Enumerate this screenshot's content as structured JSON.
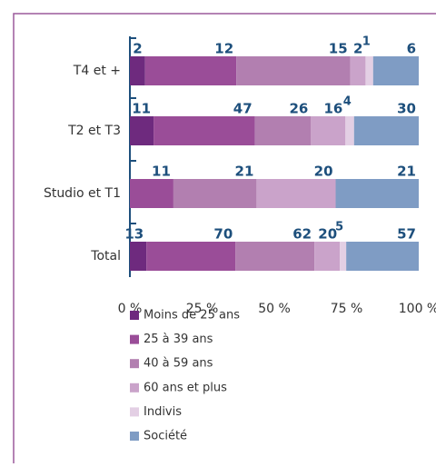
{
  "chart_data": {
    "type": "bar",
    "orientation": "horizontal",
    "stacking": "percent",
    "categories": [
      "T4 et +",
      "T2 et T3",
      "Studio et T1",
      "Total"
    ],
    "series": [
      {
        "name": "Moins de 25 ans",
        "color": "#6e2a7e",
        "values": [
          2,
          11,
          null,
          13
        ]
      },
      {
        "name": "25 à 39 ans",
        "color": "#9a4d98",
        "values": [
          12,
          47,
          11,
          70
        ]
      },
      {
        "name": "40 à 59 ans",
        "color": "#b27fb0",
        "values": [
          15,
          26,
          21,
          62
        ]
      },
      {
        "name": "60 ans et plus",
        "color": "#caa3ca",
        "values": [
          2,
          16,
          20,
          20
        ]
      },
      {
        "name": "Indivis",
        "color": "#e3cfe4",
        "values": [
          1,
          4,
          null,
          5
        ]
      },
      {
        "name": "Société",
        "color": "#7f9cc4",
        "values": [
          6,
          30,
          21,
          57
        ]
      }
    ],
    "xlim": [
      0,
      100
    ],
    "xticks": [
      {
        "value": 0,
        "label": "0 %"
      },
      {
        "value": 25,
        "label": "25 %"
      },
      {
        "value": 50,
        "label": "50 %"
      },
      {
        "value": 75,
        "label": "75 %"
      },
      {
        "value": 100,
        "label": "100 %"
      }
    ]
  }
}
